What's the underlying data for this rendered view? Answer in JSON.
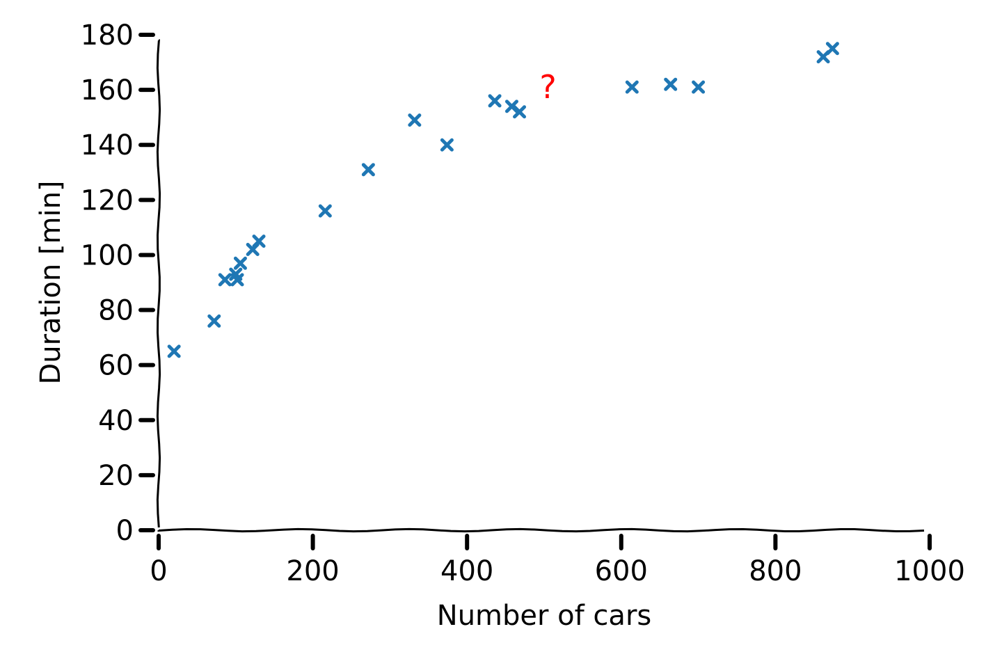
{
  "chart_data": {
    "type": "scatter",
    "title": "",
    "xlabel": "Number of cars",
    "ylabel": "Duration [min]",
    "xlim": [
      0,
      1000
    ],
    "ylim": [
      0,
      180
    ],
    "xticks": [
      0,
      200,
      400,
      600,
      800,
      1000
    ],
    "yticks": [
      0,
      20,
      40,
      60,
      80,
      100,
      120,
      140,
      160,
      180
    ],
    "grid": false,
    "marker": "x",
    "marker_color": "#1f77b4",
    "series": [
      {
        "x": [
          20,
          72,
          86,
          100,
          102,
          106,
          122,
          130,
          216,
          272,
          332,
          374,
          436,
          458,
          468,
          614,
          664,
          700,
          862,
          874
        ],
        "y": [
          65,
          76,
          91,
          93,
          91,
          97,
          102,
          105,
          116,
          131,
          149,
          140,
          156,
          154,
          152,
          161,
          162,
          161,
          172,
          175
        ]
      }
    ],
    "annotations": [
      {
        "text": "?",
        "x": 505,
        "y": 160,
        "color": "#ff0000"
      }
    ]
  }
}
